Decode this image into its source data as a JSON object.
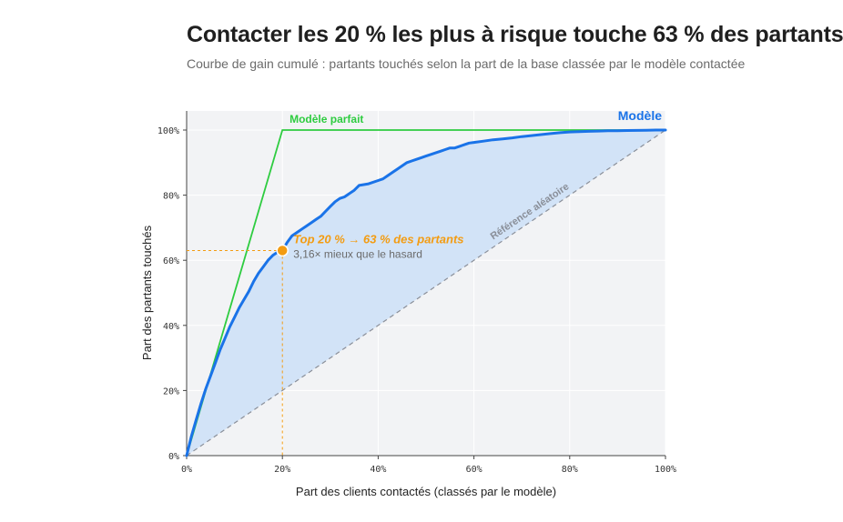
{
  "header": {
    "title": "Contacter les 20 % les plus à risque touche 63 % des partants",
    "subtitle": "Courbe de gain cumulé : partants touchés selon la part de la base classée par le modèle contactée"
  },
  "chart_data": {
    "type": "line",
    "xlabel": "Part des clients contactés (classés par le modèle)",
    "ylabel": "Part des partants touchés",
    "xlim": [
      0,
      100
    ],
    "ylim": [
      0,
      100
    ],
    "x_ticks": [
      "0%",
      "20%",
      "40%",
      "60%",
      "80%",
      "100%"
    ],
    "y_ticks": [
      "0%",
      "20%",
      "40%",
      "60%",
      "80%",
      "100%"
    ],
    "grid": true,
    "series": [
      {
        "name": "Modèle",
        "color": "#1a73e8",
        "fill": "#d2e3f7",
        "x": [
          0,
          1,
          2,
          3,
          4,
          5,
          6,
          7,
          8,
          9,
          10,
          11,
          12,
          13,
          14,
          15,
          16,
          17,
          18,
          19,
          20,
          21,
          22,
          23,
          24,
          25,
          26,
          27,
          28,
          29,
          30,
          31,
          32,
          33,
          34,
          35,
          36,
          38,
          40,
          41,
          42,
          43,
          44,
          45,
          46,
          47,
          48,
          49,
          50,
          51,
          52,
          53,
          54,
          55,
          56,
          57,
          58,
          59,
          60,
          62,
          64,
          66,
          68,
          70,
          72,
          74,
          76,
          78,
          80,
          82,
          84,
          86,
          88,
          90,
          92,
          94,
          96,
          98,
          100
        ],
        "y": [
          0,
          6,
          11,
          16,
          20.5,
          24.5,
          28.5,
          32.5,
          36,
          39.5,
          42.5,
          45.5,
          48,
          50.5,
          53.5,
          56,
          58,
          60,
          61.5,
          62.5,
          63,
          65.5,
          67.5,
          68.5,
          69.5,
          70.5,
          71.5,
          72.5,
          73.5,
          75,
          76.5,
          78,
          79,
          79.5,
          80.5,
          81.5,
          83,
          83.5,
          84.5,
          85,
          86,
          87,
          88,
          89,
          90,
          90.5,
          91,
          91.5,
          92,
          92.5,
          93,
          93.5,
          94,
          94.5,
          94.5,
          95,
          95.5,
          96,
          96.2,
          96.6,
          97,
          97.3,
          97.6,
          98,
          98.3,
          98.6,
          98.9,
          99.2,
          99.4,
          99.5,
          99.6,
          99.7,
          99.8,
          99.8,
          99.85,
          99.9,
          99.95,
          100,
          100
        ]
      },
      {
        "name": "Modèle parfait",
        "color": "#2ecc40",
        "x": [
          0,
          20,
          100
        ],
        "y": [
          0,
          100,
          100
        ]
      },
      {
        "name": "Référence aléatoire",
        "color": "#8a8f99",
        "dashed": true,
        "x": [
          0,
          100
        ],
        "y": [
          0,
          100
        ]
      }
    ],
    "annotation": {
      "x": 20,
      "y": 63,
      "color": "#f39c12",
      "text": "Top 20 % → 63 % des partants",
      "subtext": "3,16× mieux que le hasard"
    }
  }
}
